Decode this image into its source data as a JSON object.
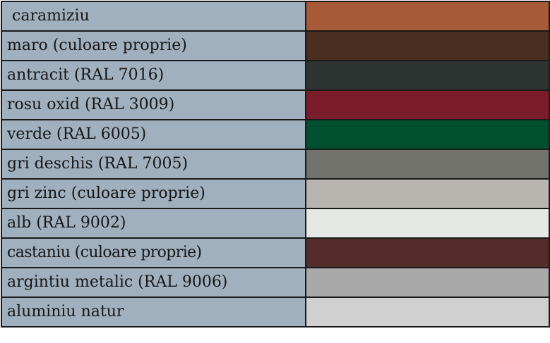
{
  "colors": [
    {
      "label": "caramiziu",
      "swatch": "#a65a38"
    },
    {
      "label": "maro (culoare proprie)",
      "swatch": "#4a2e1f"
    },
    {
      "label": "antracit (RAL 7016)",
      "swatch": "#2e3431"
    },
    {
      "label": "rosu oxid (RAL 3009)",
      "swatch": "#7a1c2a"
    },
    {
      "label": "verde (RAL 6005)",
      "swatch": "#00502f"
    },
    {
      "label": "gri deschis (RAL 7005)",
      "swatch": "#72736c"
    },
    {
      "label": "gri zinc (culoare proprie)",
      "swatch": "#b8b5b0"
    },
    {
      "label": "alb (RAL 9002)",
      "swatch": "#e6e8e3"
    },
    {
      "label": "castaniu (culoare proprie)",
      "swatch": "#542d2a"
    },
    {
      "label": "argintiu metalic (RAL 9006)",
      "swatch": "#a9a9a9"
    },
    {
      "label": "aluminiu natur",
      "swatch": "#d0d0d0"
    }
  ]
}
